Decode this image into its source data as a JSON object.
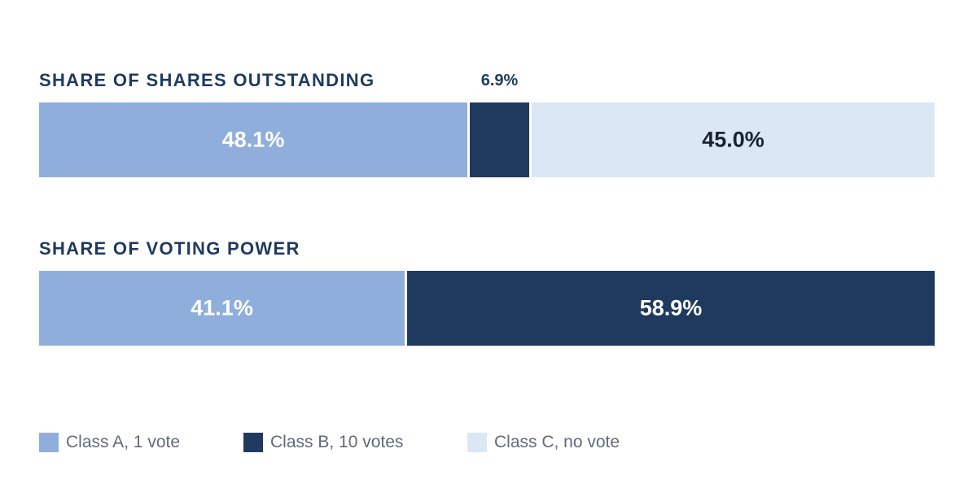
{
  "chart_data": {
    "type": "bar",
    "orientation": "horizontal-stacked-100",
    "categories": [
      "SHARE OF SHARES OUTSTANDING",
      "SHARE OF VOTING POWER"
    ],
    "series": [
      {
        "name": "Class A, 1 vote",
        "color": "#8faedb",
        "label_color": "#ffffff",
        "values": [
          48.1,
          41.1
        ]
      },
      {
        "name": "Class B, 10 votes",
        "color": "#203a5f",
        "label_color": "#ffffff",
        "values": [
          6.9,
          58.9
        ]
      },
      {
        "name": "Class C, no vote",
        "color": "#dce7f5",
        "label_color": "#1a2333",
        "values": [
          45.0,
          0
        ]
      }
    ],
    "value_labels": [
      [
        "48.1%",
        "6.9%",
        "45.0%"
      ],
      [
        "41.1%",
        "58.9%",
        ""
      ]
    ],
    "unit": "%",
    "xlim": [
      0,
      100
    ],
    "grid": false,
    "legend_position": "bottom-left"
  }
}
